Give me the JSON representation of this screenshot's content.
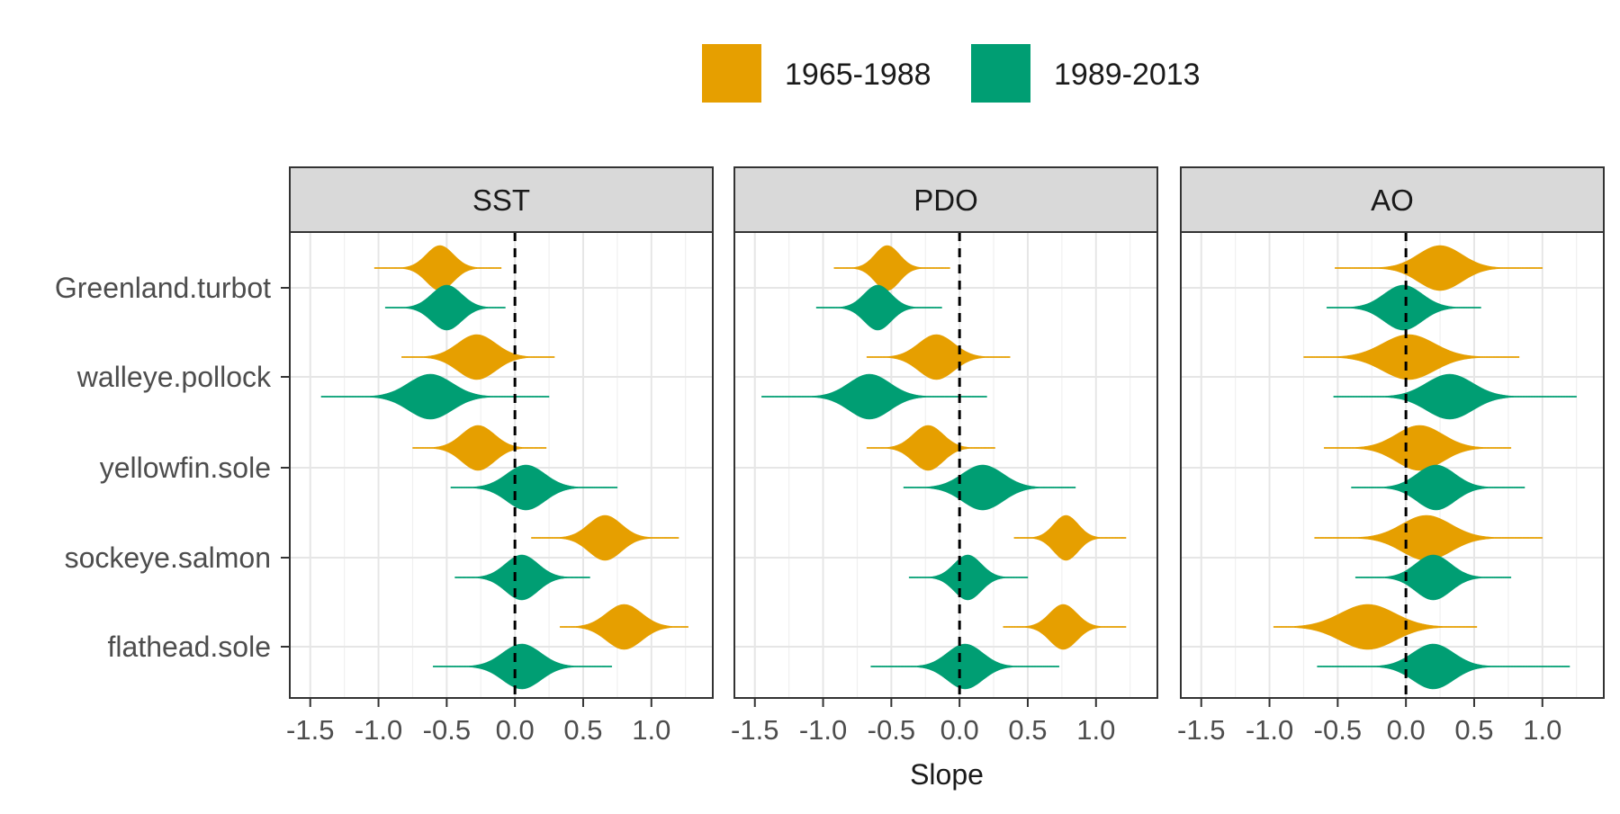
{
  "chart_data": {
    "type": "violin",
    "xlabel": "Slope",
    "ylabel": "",
    "xlim": [
      -1.65,
      1.45
    ],
    "x_ticks": [
      -1.5,
      -1.0,
      -0.5,
      0.0,
      0.5,
      1.0
    ],
    "x_tick_labels": [
      "-1.5",
      "-1.0",
      "-0.5",
      "0.0",
      "0.5",
      "1.0"
    ],
    "reference_line": 0.0,
    "grid": true,
    "legend_position": "top",
    "legend": [
      {
        "name": "1965-1988",
        "color": "#E69F00"
      },
      {
        "name": "1989-2013",
        "color": "#009E73"
      }
    ],
    "categories": [
      "Greenland.turbot",
      "walleye.pollock",
      "yellowfin.sole",
      "sockeye.salmon",
      "flathead.sole"
    ],
    "panels": [
      {
        "name": "SST",
        "series": [
          {
            "name": "1965-1988",
            "median": [
              -0.55,
              -0.28,
              -0.27,
              0.66,
              0.8
            ],
            "range": [
              [
                -1.03,
                -0.1
              ],
              [
                -0.83,
                0.29
              ],
              [
                -0.75,
                0.23
              ],
              [
                0.12,
                1.2
              ],
              [
                0.33,
                1.27
              ]
            ],
            "spread": [
              0.1,
              0.14,
              0.12,
              0.12,
              0.13
            ]
          },
          {
            "name": "1989-2013",
            "median": [
              -0.5,
              -0.62,
              0.08,
              0.05,
              0.05
            ],
            "range": [
              [
                -0.95,
                -0.07
              ],
              [
                -1.42,
                0.25
              ],
              [
                -0.47,
                0.75
              ],
              [
                -0.44,
                0.55
              ],
              [
                -0.6,
                0.71
              ]
            ],
            "spread": [
              0.11,
              0.16,
              0.14,
              0.12,
              0.14
            ]
          }
        ]
      },
      {
        "name": "PDO",
        "series": [
          {
            "name": "1965-1988",
            "median": [
              -0.53,
              -0.17,
              -0.23,
              0.78,
              0.76
            ],
            "range": [
              [
                -0.92,
                -0.07
              ],
              [
                -0.68,
                0.37
              ],
              [
                -0.68,
                0.26
              ],
              [
                0.4,
                1.22
              ],
              [
                0.32,
                1.22
              ]
            ],
            "spread": [
              0.09,
              0.13,
              0.11,
              0.09,
              0.1
            ]
          },
          {
            "name": "1989-2013",
            "median": [
              -0.6,
              -0.66,
              0.17,
              0.06,
              0.04
            ],
            "range": [
              [
                -1.05,
                -0.13
              ],
              [
                -1.45,
                0.2
              ],
              [
                -0.41,
                0.85
              ],
              [
                -0.37,
                0.5
              ],
              [
                -0.65,
                0.73
              ]
            ],
            "spread": [
              0.1,
              0.15,
              0.15,
              0.1,
              0.13
            ]
          }
        ]
      },
      {
        "name": "AO",
        "series": [
          {
            "name": "1965-1988",
            "median": [
              0.25,
              0.02,
              0.1,
              0.15,
              -0.28
            ],
            "range": [
              [
                -0.52,
                1.0
              ],
              [
                -0.75,
                0.83
              ],
              [
                -0.6,
                0.77
              ],
              [
                -0.67,
                1.0
              ],
              [
                -0.97,
                0.52
              ]
            ],
            "spread": [
              0.16,
              0.19,
              0.17,
              0.18,
              0.2
            ]
          },
          {
            "name": "1989-2013",
            "median": [
              -0.02,
              0.32,
              0.22,
              0.2,
              0.2
            ],
            "range": [
              [
                -0.58,
                0.55
              ],
              [
                -0.53,
                1.25
              ],
              [
                -0.4,
                0.87
              ],
              [
                -0.37,
                0.77
              ],
              [
                -0.65,
                1.2
              ]
            ],
            "spread": [
              0.14,
              0.17,
              0.14,
              0.13,
              0.15
            ]
          }
        ]
      }
    ]
  }
}
